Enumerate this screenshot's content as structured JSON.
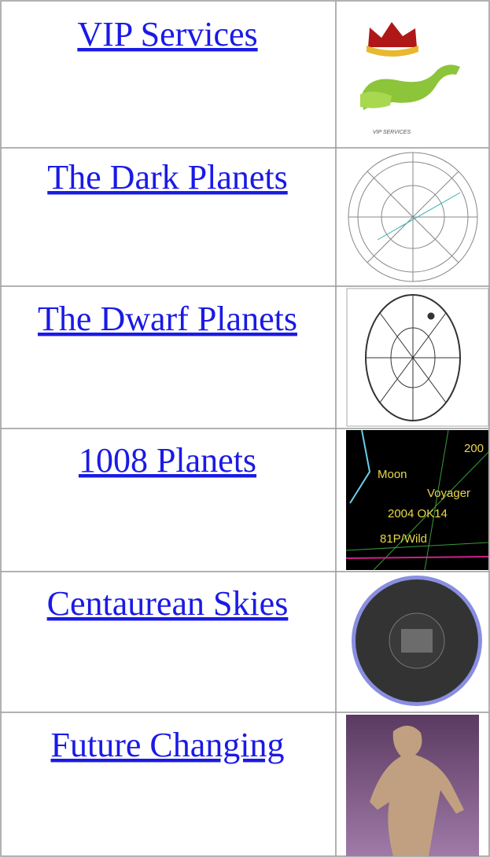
{
  "table": {
    "rows": [
      {
        "link": "VIP Services",
        "image_caption": "VIP SERVICES"
      },
      {
        "link": "The Dark Planets"
      },
      {
        "link": "The Dwarf Planets"
      },
      {
        "link": "1008 Planets",
        "image_labels": [
          "Moon",
          "Voyager",
          "2004 OK14",
          "81P/Wild",
          "200"
        ]
      },
      {
        "link": "Centaurean Skies"
      },
      {
        "link": "Future Changing"
      }
    ]
  }
}
